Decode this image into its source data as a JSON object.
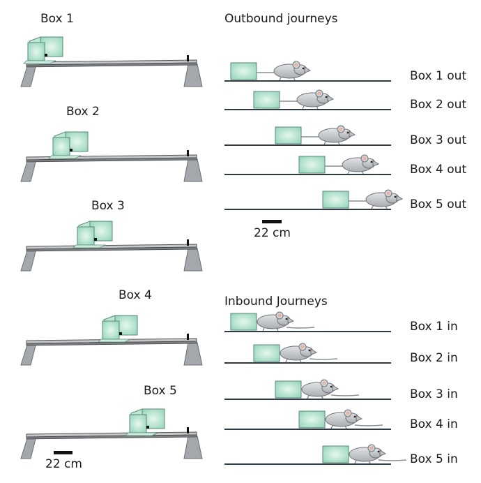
{
  "left_panel": {
    "box_labels": [
      "Box 1",
      "Box 2",
      "Box 3",
      "Box 4",
      "Box 5"
    ],
    "scale_label": "22 cm"
  },
  "outbound": {
    "heading": "Outbound journeys",
    "rows": [
      "Box 1 out",
      "Box 2 out",
      "Box 3 out",
      "Box 4 out",
      "Box 5 out"
    ],
    "scale_label": "22 cm"
  },
  "inbound": {
    "heading": "Inbound Journeys",
    "rows": [
      "Box 1 in",
      "Box 2 in",
      "Box 3 in",
      "Box 4 in",
      "Box 5 in"
    ]
  },
  "colors": {
    "box_fill": "#a8e0c8",
    "box_stroke": "#5a8a78",
    "mouse_fill": "#c9ccd0",
    "track": "#2f3a42",
    "support": "#9a9ea2"
  }
}
